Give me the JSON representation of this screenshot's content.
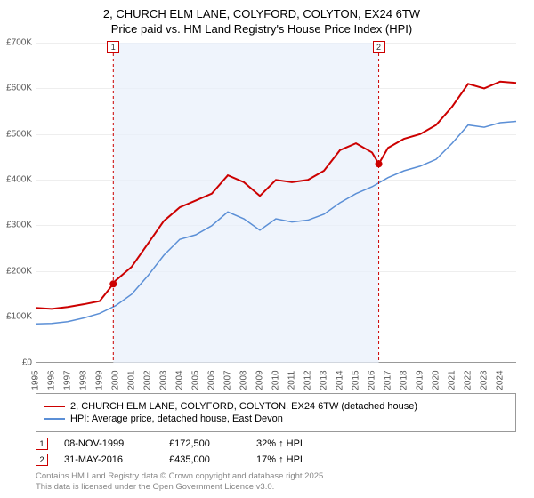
{
  "title_line1": "2, CHURCH ELM LANE, COLYFORD, COLYTON, EX24 6TW",
  "title_line2": "Price paid vs. HM Land Registry's House Price Index (HPI)",
  "chart": {
    "type": "line",
    "background_color": "#ffffff",
    "grid_color": "#eeeeee",
    "axis_color": "#999999",
    "band_color": "#e8f0fb",
    "x_years": [
      1995,
      1996,
      1997,
      1998,
      1999,
      2000,
      2001,
      2002,
      2003,
      2004,
      2005,
      2006,
      2007,
      2008,
      2009,
      2010,
      2011,
      2012,
      2013,
      2014,
      2015,
      2016,
      2017,
      2018,
      2019,
      2020,
      2021,
      2022,
      2023,
      2024
    ],
    "xlim": [
      1995,
      2025
    ],
    "ylim": [
      0,
      700000
    ],
    "ytick_step": 100000,
    "y_labels": [
      "£0",
      "£100K",
      "£200K",
      "£300K",
      "£400K",
      "£500K",
      "£600K",
      "£700K"
    ],
    "series": [
      {
        "name": "price_paid",
        "color": "#cc0000",
        "line_width": 2,
        "data": [
          [
            1995,
            120000
          ],
          [
            1996,
            118000
          ],
          [
            1997,
            122000
          ],
          [
            1998,
            128000
          ],
          [
            1999,
            135000
          ],
          [
            1999.85,
            172500
          ],
          [
            2000,
            180000
          ],
          [
            2001,
            210000
          ],
          [
            2002,
            260000
          ],
          [
            2003,
            310000
          ],
          [
            2004,
            340000
          ],
          [
            2005,
            355000
          ],
          [
            2006,
            370000
          ],
          [
            2007,
            410000
          ],
          [
            2008,
            395000
          ],
          [
            2009,
            365000
          ],
          [
            2010,
            400000
          ],
          [
            2011,
            395000
          ],
          [
            2012,
            400000
          ],
          [
            2013,
            420000
          ],
          [
            2014,
            465000
          ],
          [
            2015,
            480000
          ],
          [
            2016,
            460000
          ],
          [
            2016.42,
            435000
          ],
          [
            2017,
            470000
          ],
          [
            2018,
            490000
          ],
          [
            2019,
            500000
          ],
          [
            2020,
            520000
          ],
          [
            2021,
            560000
          ],
          [
            2022,
            610000
          ],
          [
            2023,
            600000
          ],
          [
            2024,
            615000
          ],
          [
            2025,
            612000
          ]
        ]
      },
      {
        "name": "hpi",
        "color": "#5b8fd6",
        "line_width": 1.5,
        "data": [
          [
            1995,
            85000
          ],
          [
            1996,
            86000
          ],
          [
            1997,
            90000
          ],
          [
            1998,
            98000
          ],
          [
            1999,
            108000
          ],
          [
            2000,
            125000
          ],
          [
            2001,
            150000
          ],
          [
            2002,
            190000
          ],
          [
            2003,
            235000
          ],
          [
            2004,
            270000
          ],
          [
            2005,
            280000
          ],
          [
            2006,
            300000
          ],
          [
            2007,
            330000
          ],
          [
            2008,
            315000
          ],
          [
            2009,
            290000
          ],
          [
            2010,
            315000
          ],
          [
            2011,
            308000
          ],
          [
            2012,
            312000
          ],
          [
            2013,
            325000
          ],
          [
            2014,
            350000
          ],
          [
            2015,
            370000
          ],
          [
            2016,
            385000
          ],
          [
            2017,
            405000
          ],
          [
            2018,
            420000
          ],
          [
            2019,
            430000
          ],
          [
            2020,
            445000
          ],
          [
            2021,
            480000
          ],
          [
            2022,
            520000
          ],
          [
            2023,
            515000
          ],
          [
            2024,
            525000
          ],
          [
            2025,
            528000
          ]
        ]
      }
    ],
    "markers": [
      {
        "n": "1",
        "x": 1999.85,
        "y": 172500
      },
      {
        "n": "2",
        "x": 2016.42,
        "y": 435000
      }
    ],
    "label_fontsize": 10,
    "title_fontsize": 13
  },
  "legend": {
    "items": [
      {
        "color": "#cc0000",
        "label": "2, CHURCH ELM LANE, COLYFORD, COLYTON, EX24 6TW (detached house)"
      },
      {
        "color": "#5b8fd6",
        "label": "HPI: Average price, detached house, East Devon"
      }
    ]
  },
  "events": [
    {
      "n": "1",
      "date": "08-NOV-1999",
      "price": "£172,500",
      "pct": "32% ↑ HPI"
    },
    {
      "n": "2",
      "date": "31-MAY-2016",
      "price": "£435,000",
      "pct": "17% ↑ HPI"
    }
  ],
  "footer_line1": "Contains HM Land Registry data © Crown copyright and database right 2025.",
  "footer_line2": "This data is licensed under the Open Government Licence v3.0."
}
